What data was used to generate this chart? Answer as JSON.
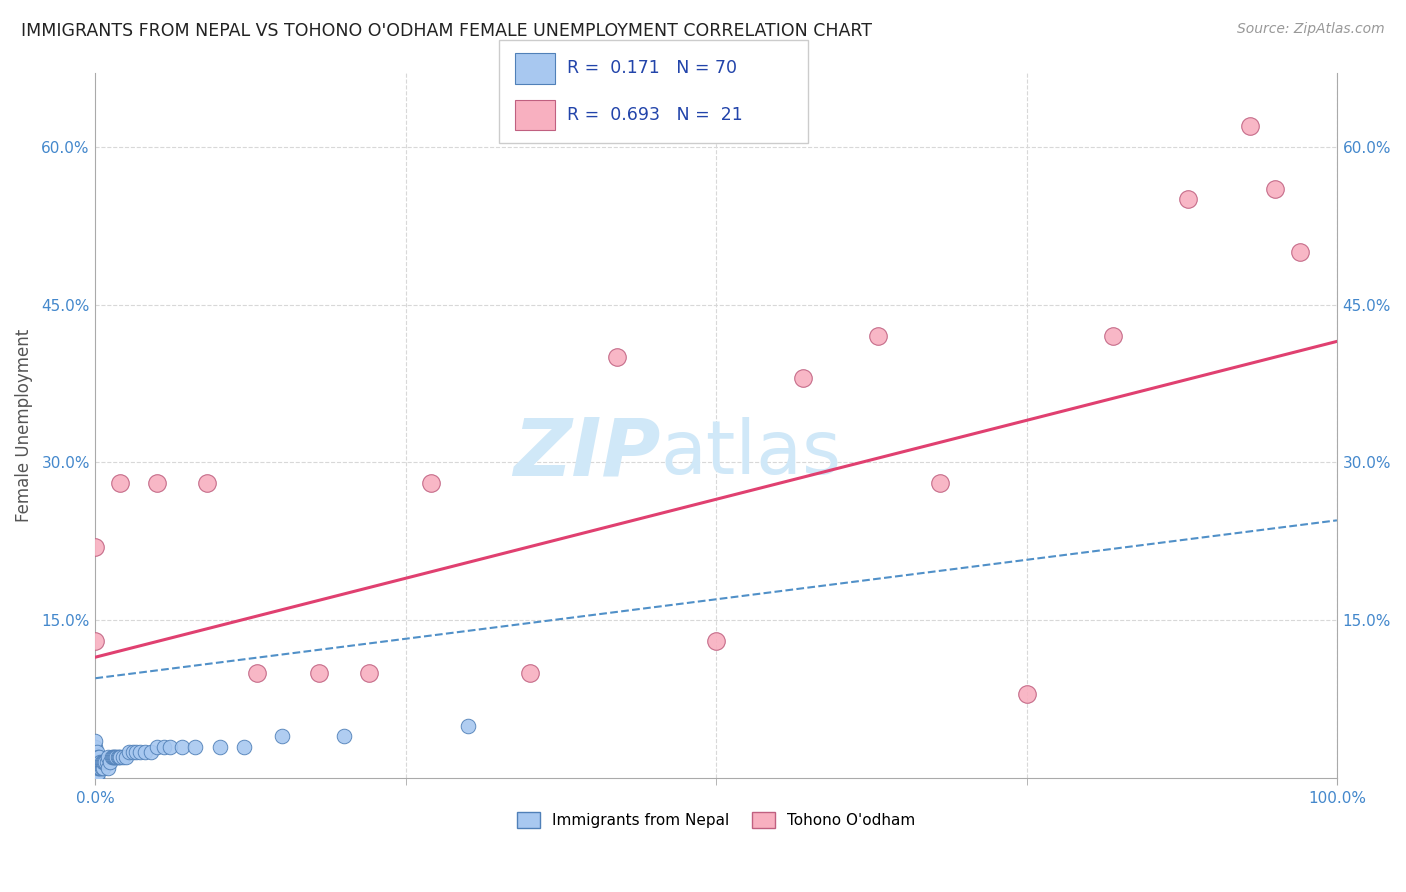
{
  "title": "IMMIGRANTS FROM NEPAL VS TOHONO O'ODHAM FEMALE UNEMPLOYMENT CORRELATION CHART",
  "source": "Source: ZipAtlas.com",
  "ylabel": "Female Unemployment",
  "ytick_vals": [
    0.0,
    0.15,
    0.3,
    0.45,
    0.6
  ],
  "ytick_labels": [
    "",
    "15.0%",
    "30.0%",
    "45.0%",
    "60.0%"
  ],
  "xtick_vals": [
    0.0,
    1.0
  ],
  "xtick_labels": [
    "0.0%",
    "100.0%"
  ],
  "xlim": [
    0.0,
    1.0
  ],
  "ylim": [
    0.0,
    0.67
  ],
  "blue_color": "#a8c8f0",
  "blue_edge": "#5080b8",
  "pink_color": "#f8b0c0",
  "pink_edge": "#c06080",
  "blue_line_color": "#5090c8",
  "pink_line_color": "#e04070",
  "grid_color": "#d8d8d8",
  "tick_color": "#4488cc",
  "watermark_color": "#d0e8f8",
  "legend_box_edge": "#cccccc",
  "r1": 0.171,
  "n1": 70,
  "r2": 0.693,
  "n2": 21,
  "nepal_x": [
    0.0,
    0.0,
    0.0,
    0.0,
    0.0,
    0.0,
    0.0,
    0.0,
    0.0,
    0.0,
    0.0,
    0.0,
    0.0,
    0.0,
    0.0,
    0.0,
    0.0,
    0.0,
    0.0,
    0.0,
    0.001,
    0.001,
    0.001,
    0.001,
    0.001,
    0.001,
    0.002,
    0.002,
    0.002,
    0.003,
    0.003,
    0.003,
    0.004,
    0.004,
    0.005,
    0.005,
    0.006,
    0.006,
    0.007,
    0.008,
    0.009,
    0.01,
    0.01,
    0.012,
    0.013,
    0.014,
    0.015,
    0.016,
    0.017,
    0.018,
    0.019,
    0.02,
    0.022,
    0.025,
    0.027,
    0.03,
    0.033,
    0.036,
    0.04,
    0.045,
    0.05,
    0.055,
    0.06,
    0.07,
    0.08,
    0.1,
    0.12,
    0.15,
    0.2,
    0.3
  ],
  "nepal_y": [
    0.0,
    0.0,
    0.0,
    0.0,
    0.0,
    0.005,
    0.005,
    0.005,
    0.01,
    0.01,
    0.01,
    0.015,
    0.015,
    0.02,
    0.02,
    0.02,
    0.025,
    0.025,
    0.03,
    0.035,
    0.0,
    0.005,
    0.01,
    0.015,
    0.02,
    0.025,
    0.005,
    0.01,
    0.02,
    0.01,
    0.015,
    0.02,
    0.01,
    0.015,
    0.01,
    0.015,
    0.01,
    0.015,
    0.015,
    0.015,
    0.015,
    0.01,
    0.02,
    0.015,
    0.02,
    0.02,
    0.02,
    0.02,
    0.02,
    0.02,
    0.02,
    0.02,
    0.02,
    0.02,
    0.025,
    0.025,
    0.025,
    0.025,
    0.025,
    0.025,
    0.03,
    0.03,
    0.03,
    0.03,
    0.03,
    0.03,
    0.03,
    0.04,
    0.04,
    0.05
  ],
  "tohono_x": [
    0.0,
    0.0,
    0.02,
    0.05,
    0.09,
    0.13,
    0.18,
    0.22,
    0.27,
    0.35,
    0.42,
    0.5,
    0.57,
    0.63,
    0.68,
    0.75,
    0.82,
    0.88,
    0.93,
    0.95,
    0.97
  ],
  "tohono_y": [
    0.13,
    0.22,
    0.28,
    0.28,
    0.28,
    0.1,
    0.1,
    0.1,
    0.28,
    0.1,
    0.4,
    0.13,
    0.38,
    0.42,
    0.28,
    0.08,
    0.42,
    0.55,
    0.62,
    0.56,
    0.5
  ],
  "blue_line_x0": 0.0,
  "blue_line_y0": 0.095,
  "blue_line_x1": 1.0,
  "blue_line_y1": 0.245,
  "pink_line_x0": 0.0,
  "pink_line_y0": 0.115,
  "pink_line_x1": 1.0,
  "pink_line_y1": 0.415
}
